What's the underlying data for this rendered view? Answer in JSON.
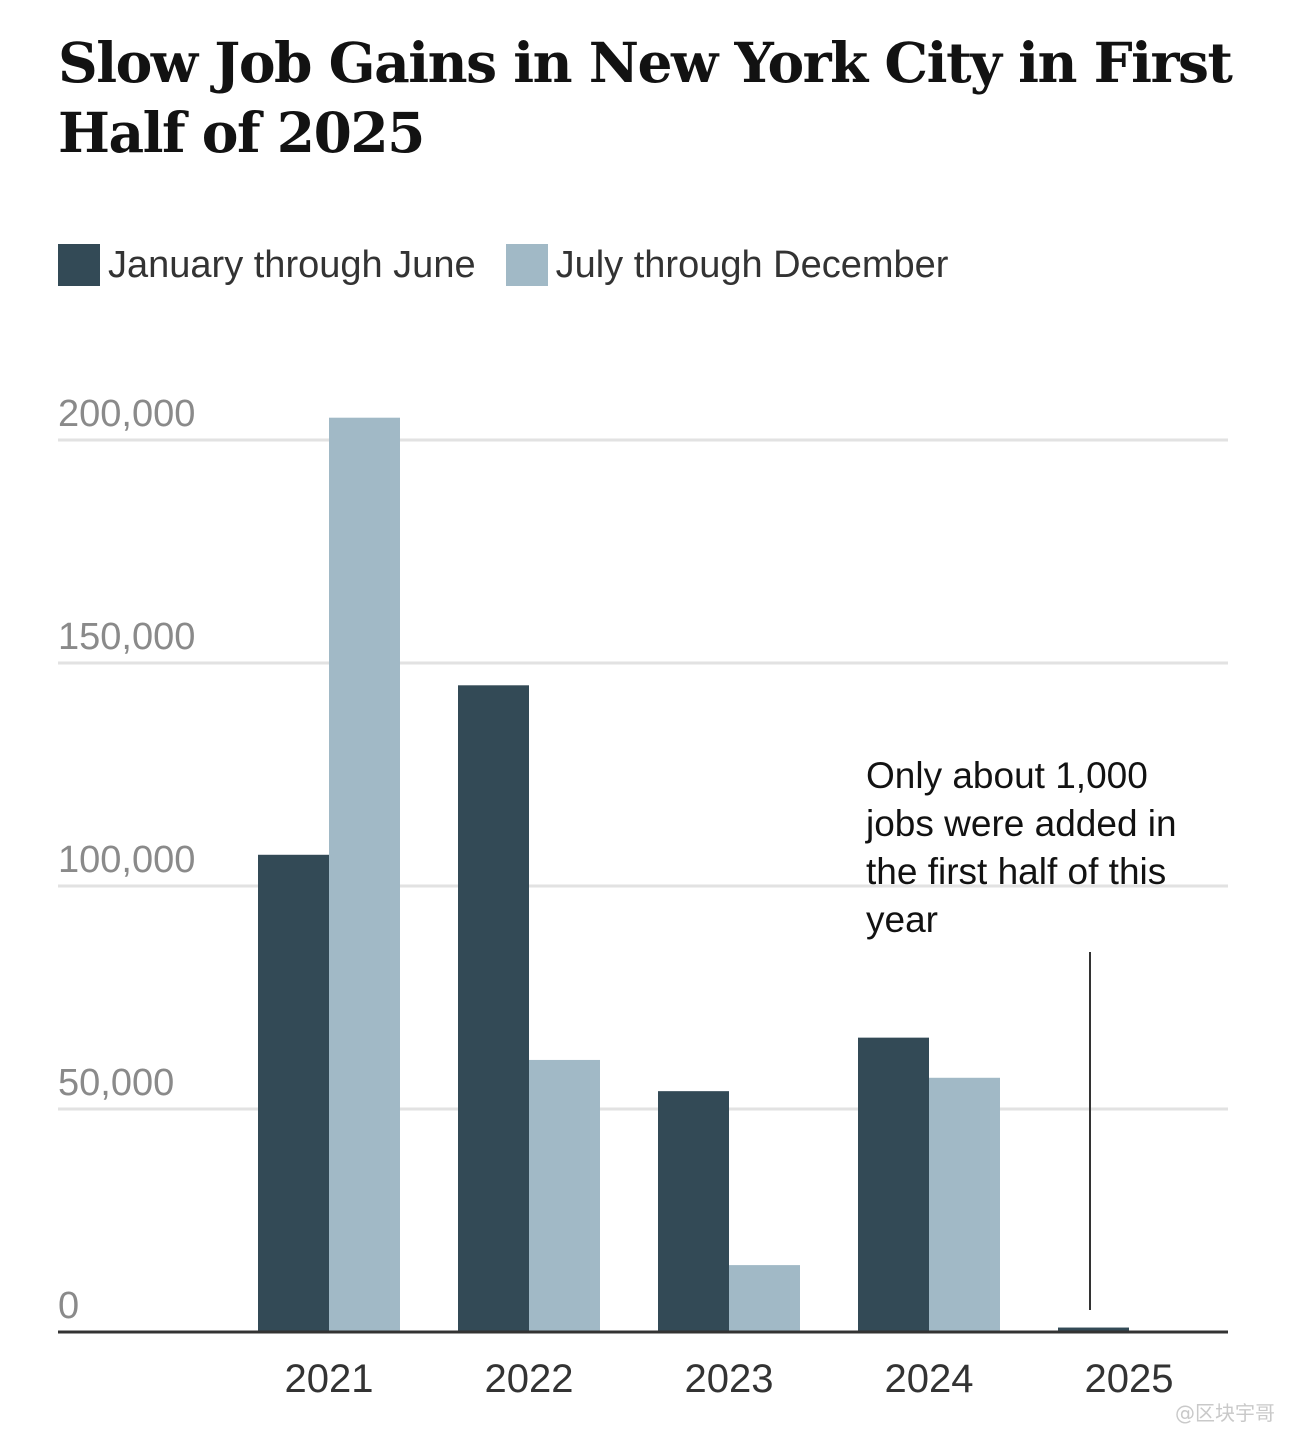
{
  "chart_data": {
    "type": "bar",
    "title": "Slow Job Gains in New York City in First Half of 2025",
    "categories": [
      "2021",
      "2022",
      "2023",
      "2024",
      "2025"
    ],
    "series": [
      {
        "name": "January through June",
        "color": "#334a56",
        "values": [
          107000,
          145000,
          54000,
          66000,
          1000
        ]
      },
      {
        "name": "July through December",
        "color": "#a1b9c6",
        "values": [
          205000,
          61000,
          15000,
          57000,
          null
        ]
      }
    ],
    "yticks": [
      "200,000",
      "150,000",
      "100,000",
      "50,000",
      "0"
    ],
    "ytick_values": [
      200000,
      150000,
      100000,
      50000,
      0
    ],
    "ylim": [
      0,
      200000
    ],
    "grid": true,
    "legend_position": "top-left",
    "annotation": {
      "text_lines": [
        "Only about 1,000",
        "jobs were added in",
        "the first half of this",
        "year"
      ],
      "target_category": "2025"
    }
  },
  "watermark": "@区块宇哥"
}
